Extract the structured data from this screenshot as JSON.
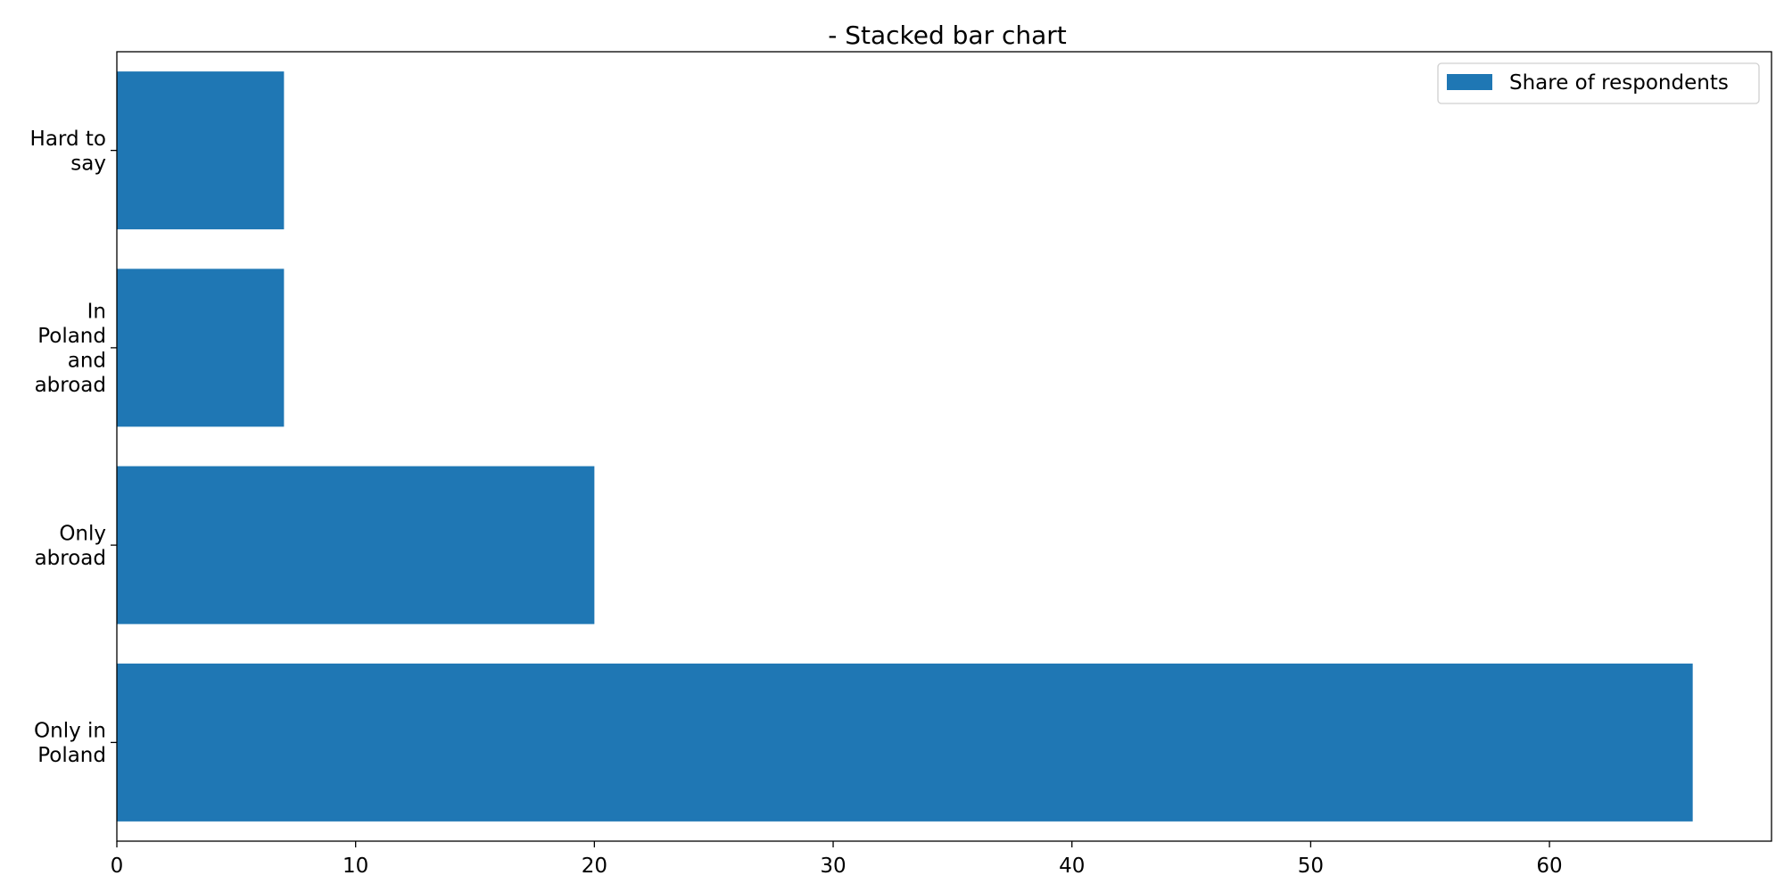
{
  "chart_data": {
    "type": "bar",
    "orientation": "horizontal",
    "title": "- Stacked bar chart",
    "xlabel": "",
    "ylabel": "",
    "categories": [
      "Only in Poland",
      "Only abroad",
      "In Poland and abroad",
      "Hard to say"
    ],
    "category_label_lines": [
      [
        "Only in",
        "Poland"
      ],
      [
        "Only",
        "abroad"
      ],
      [
        "In",
        "Poland",
        "and",
        "abroad"
      ],
      [
        "Hard to",
        "say"
      ]
    ],
    "series": [
      {
        "name": "Share of respondents",
        "values": [
          66,
          20,
          7,
          7
        ],
        "color": "#1f77b4"
      }
    ],
    "xlim": [
      0,
      69.3
    ],
    "xticks": [
      0,
      10,
      20,
      30,
      40,
      50,
      60
    ],
    "grid": false,
    "legend_position": "top-right"
  }
}
